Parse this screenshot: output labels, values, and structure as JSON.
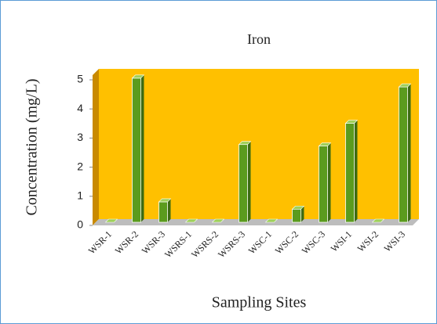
{
  "chart_data": {
    "type": "bar",
    "title": "Iron",
    "x_label": "Sampling Sites",
    "y_label": "Concentration (mg/L)",
    "categories": [
      "WSR-1",
      "WSR-2",
      "WSR-3",
      "WSRS-1",
      "WSRS-2",
      "WSRS-3",
      "WSC-1",
      "WSC-2",
      "WSC-3",
      "WSI-1",
      "WSI-2",
      "WSI-3"
    ],
    "values": [
      0,
      4.95,
      0.7,
      0,
      0,
      2.67,
      0,
      0.45,
      2.62,
      3.4,
      0,
      4.65
    ],
    "color": "#5b9b1e",
    "background": "#ffc000",
    "ylim": [
      0,
      5
    ],
    "yticks": [
      0,
      1,
      2,
      3,
      4,
      5
    ],
    "grid": false
  }
}
